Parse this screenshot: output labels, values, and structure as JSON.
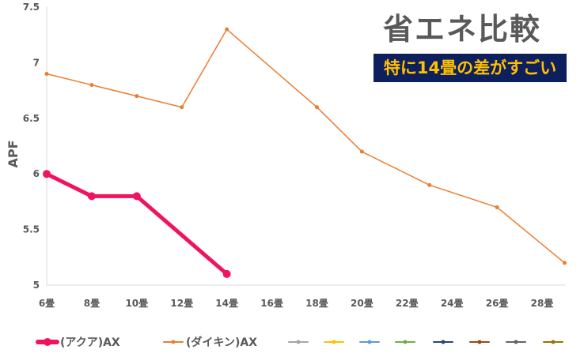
{
  "chart_data": {
    "type": "line",
    "title": "省エネ比較",
    "subtitle": "特に14畳の差がすごい",
    "xlabel": "",
    "ylabel": "APF",
    "ylim": [
      5,
      7.5
    ],
    "xlim": [
      6,
      29
    ],
    "yticks": [
      "5",
      "5.5",
      "6",
      "6.5",
      "7",
      "7.5"
    ],
    "ytick_values": [
      5,
      5.5,
      6,
      6.5,
      7,
      7.5
    ],
    "xticks": [
      "6畳",
      "8畳",
      "10畳",
      "12畳",
      "14畳",
      "16畳",
      "18畳",
      "20畳",
      "22畳",
      "24畳",
      "26畳",
      "28畳"
    ],
    "xtick_values": [
      6,
      8,
      10,
      12,
      14,
      16,
      18,
      20,
      22,
      24,
      26,
      28
    ],
    "grid": false,
    "legend": "bottom",
    "series": [
      {
        "name": "(アクア)AX",
        "color": "#f0145f",
        "width": 5,
        "x": [
          6,
          8,
          10,
          14
        ],
        "y": [
          6.0,
          5.8,
          5.8,
          5.1
        ]
      },
      {
        "name": "(ダイキン)AX",
        "color": "#ed7d31",
        "width": 1.5,
        "x": [
          6,
          8,
          10,
          12,
          14,
          18,
          20,
          23,
          26,
          29
        ],
        "y": [
          6.9,
          6.8,
          6.7,
          6.6,
          7.3,
          6.6,
          6.2,
          5.9,
          5.7,
          5.2
        ]
      },
      {
        "name": "",
        "color": "#a5a5a5",
        "x": [],
        "y": []
      },
      {
        "name": "",
        "color": "#ffc000",
        "x": [],
        "y": []
      },
      {
        "name": "",
        "color": "#5b9bd5",
        "x": [],
        "y": []
      },
      {
        "name": "",
        "color": "#70ad47",
        "x": [],
        "y": []
      },
      {
        "name": "",
        "color": "#264478",
        "x": [],
        "y": []
      },
      {
        "name": "",
        "color": "#9e480e",
        "x": [],
        "y": []
      },
      {
        "name": "",
        "color": "#636363",
        "x": [],
        "y": []
      },
      {
        "name": "",
        "color": "#997300",
        "x": [],
        "y": []
      }
    ]
  }
}
